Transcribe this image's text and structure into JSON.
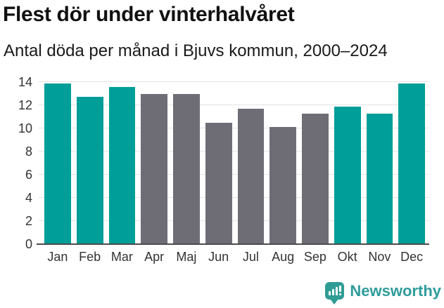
{
  "header": {
    "title": "Flest dör under vinterhalvåret",
    "subtitle": "Antal döda per månad i Bjuvs kommun, 2000–2024"
  },
  "chart_data": {
    "type": "bar",
    "title": "Flest dör under vinterhalvåret",
    "subtitle": "Antal döda per månad i Bjuvs kommun, 2000–2024",
    "categories": [
      "Jan",
      "Feb",
      "Mar",
      "Apr",
      "Maj",
      "Jun",
      "Jul",
      "Aug",
      "Sep",
      "Okt",
      "Nov",
      "Dec"
    ],
    "values": [
      13.9,
      12.7,
      13.6,
      13.0,
      13.0,
      10.5,
      11.7,
      10.1,
      11.3,
      11.9,
      11.3,
      13.9
    ],
    "bar_groups": [
      "winter",
      "winter",
      "winter",
      "summer",
      "summer",
      "summer",
      "summer",
      "summer",
      "summer",
      "winter",
      "winter",
      "winter"
    ],
    "group_colors": {
      "winter": "#009e99",
      "summer": "#6e6d76"
    },
    "xlabel": "",
    "ylabel": "",
    "ylim": [
      0,
      14
    ],
    "yticks": [
      0,
      2,
      4,
      6,
      8,
      10,
      12,
      14
    ],
    "grid": true,
    "legend": "none"
  },
  "branding": {
    "logo_text": "Newsworthy",
    "logo_icon": "newsworthy-speech-bubble-bar-chart-icon",
    "logo_color": "#2f9c9c"
  },
  "colors": {
    "highlight_teal": "#009e99",
    "neutral_gray": "#6e6d76",
    "gridline": "#e4e4e4",
    "axis_line": "#4c4c4c",
    "axis_text": "#333333"
  }
}
